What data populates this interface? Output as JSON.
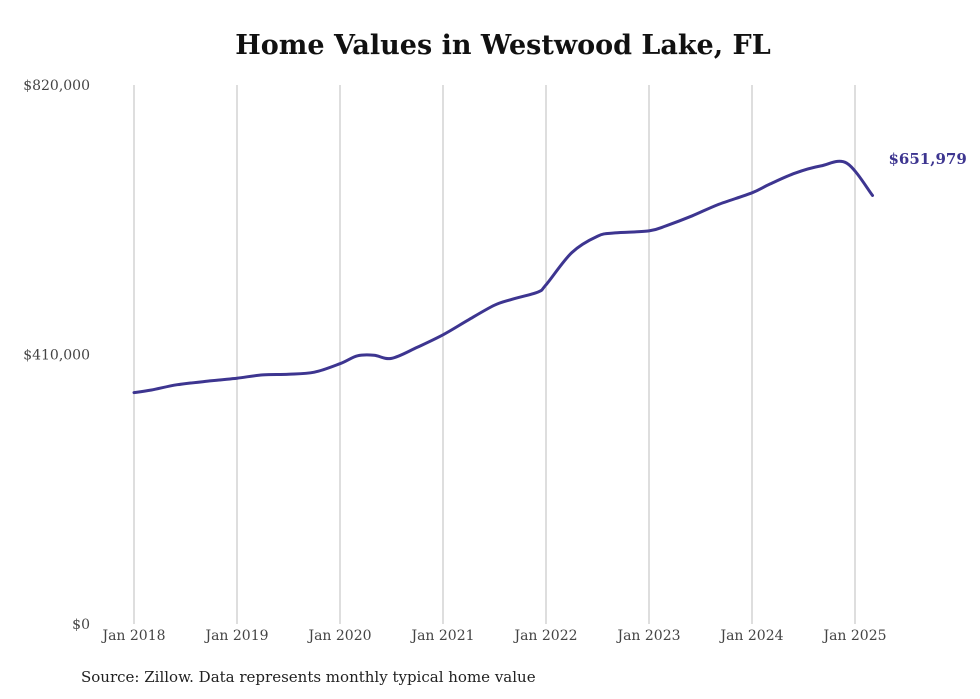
{
  "chart_data": {
    "type": "line",
    "title": "Home Values in Westwood Lake, FL",
    "source": "Source: Zillow. Data represents monthly typical home value",
    "ylim": [
      0,
      820000
    ],
    "y_ticks": [
      {
        "value": 0,
        "label": "$0"
      },
      {
        "value": 410000,
        "label": "$410,000"
      },
      {
        "value": 820000,
        "label": "$820,000"
      }
    ],
    "x_ticks": [
      {
        "value": 2018,
        "label": "Jan 2018"
      },
      {
        "value": 2019,
        "label": "Jan 2019"
      },
      {
        "value": 2020,
        "label": "Jan 2020"
      },
      {
        "value": 2021,
        "label": "Jan 2021"
      },
      {
        "value": 2022,
        "label": "Jan 2022"
      },
      {
        "value": 2023,
        "label": "Jan 2023"
      },
      {
        "value": 2024,
        "label": "Jan 2024"
      },
      {
        "value": 2025,
        "label": "Jan 2025"
      }
    ],
    "xlim": [
      2018,
      2025
    ],
    "grid": "vertical",
    "line_color": "#3d3590",
    "end_label": "$651,979",
    "series": [
      {
        "x": [
          2018.0,
          2018.17,
          2018.42,
          2018.75,
          2019.0,
          2019.25,
          2019.5,
          2019.75,
          2020.0,
          2020.17,
          2020.33,
          2020.5,
          2020.75,
          2021.0,
          2021.25,
          2021.5,
          2021.67,
          2021.92,
          2022.0,
          2022.25,
          2022.5,
          2022.67,
          2023.0,
          2023.17,
          2023.42,
          2023.67,
          2024.0,
          2024.17,
          2024.42,
          2024.67,
          2024.92,
          2025.17
        ],
        "y": [
          352000,
          356000,
          364000,
          370000,
          374000,
          379000,
          380000,
          383000,
          396000,
          408000,
          409000,
          404000,
          421000,
          440000,
          463000,
          485000,
          494000,
          505000,
          516000,
          565000,
          590000,
          595000,
          598000,
          606000,
          621000,
          638000,
          656000,
          669000,
          686000,
          697000,
          701000,
          651979
        ]
      }
    ]
  }
}
